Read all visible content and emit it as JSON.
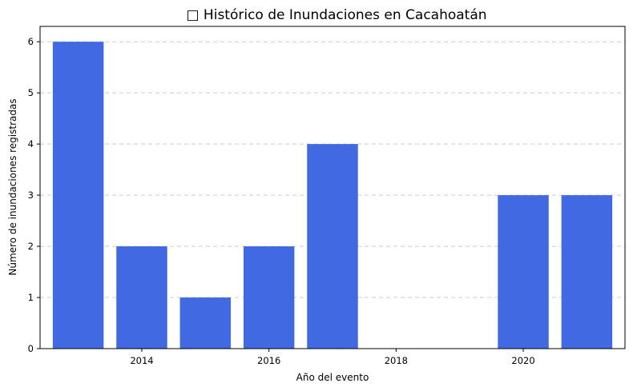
{
  "chart_data": {
    "type": "bar",
    "title": "□ Histórico de Inundaciones en Cacahoatán",
    "xlabel": "Año del evento",
    "ylabel": "Número de inundaciones registradas",
    "x": [
      2013,
      2014,
      2015,
      2016,
      2017,
      2020,
      2021
    ],
    "values": [
      6,
      2,
      1,
      2,
      4,
      3,
      3
    ],
    "xticks": [
      2014,
      2016,
      2018,
      2020
    ],
    "yticks": [
      0,
      1,
      2,
      3,
      4,
      5,
      6
    ],
    "xlim": [
      2012.4,
      2021.6
    ],
    "ylim": [
      0,
      6.3
    ],
    "bar_width": 0.8,
    "grid": "y-dashed",
    "bar_color": "#4169e1"
  }
}
